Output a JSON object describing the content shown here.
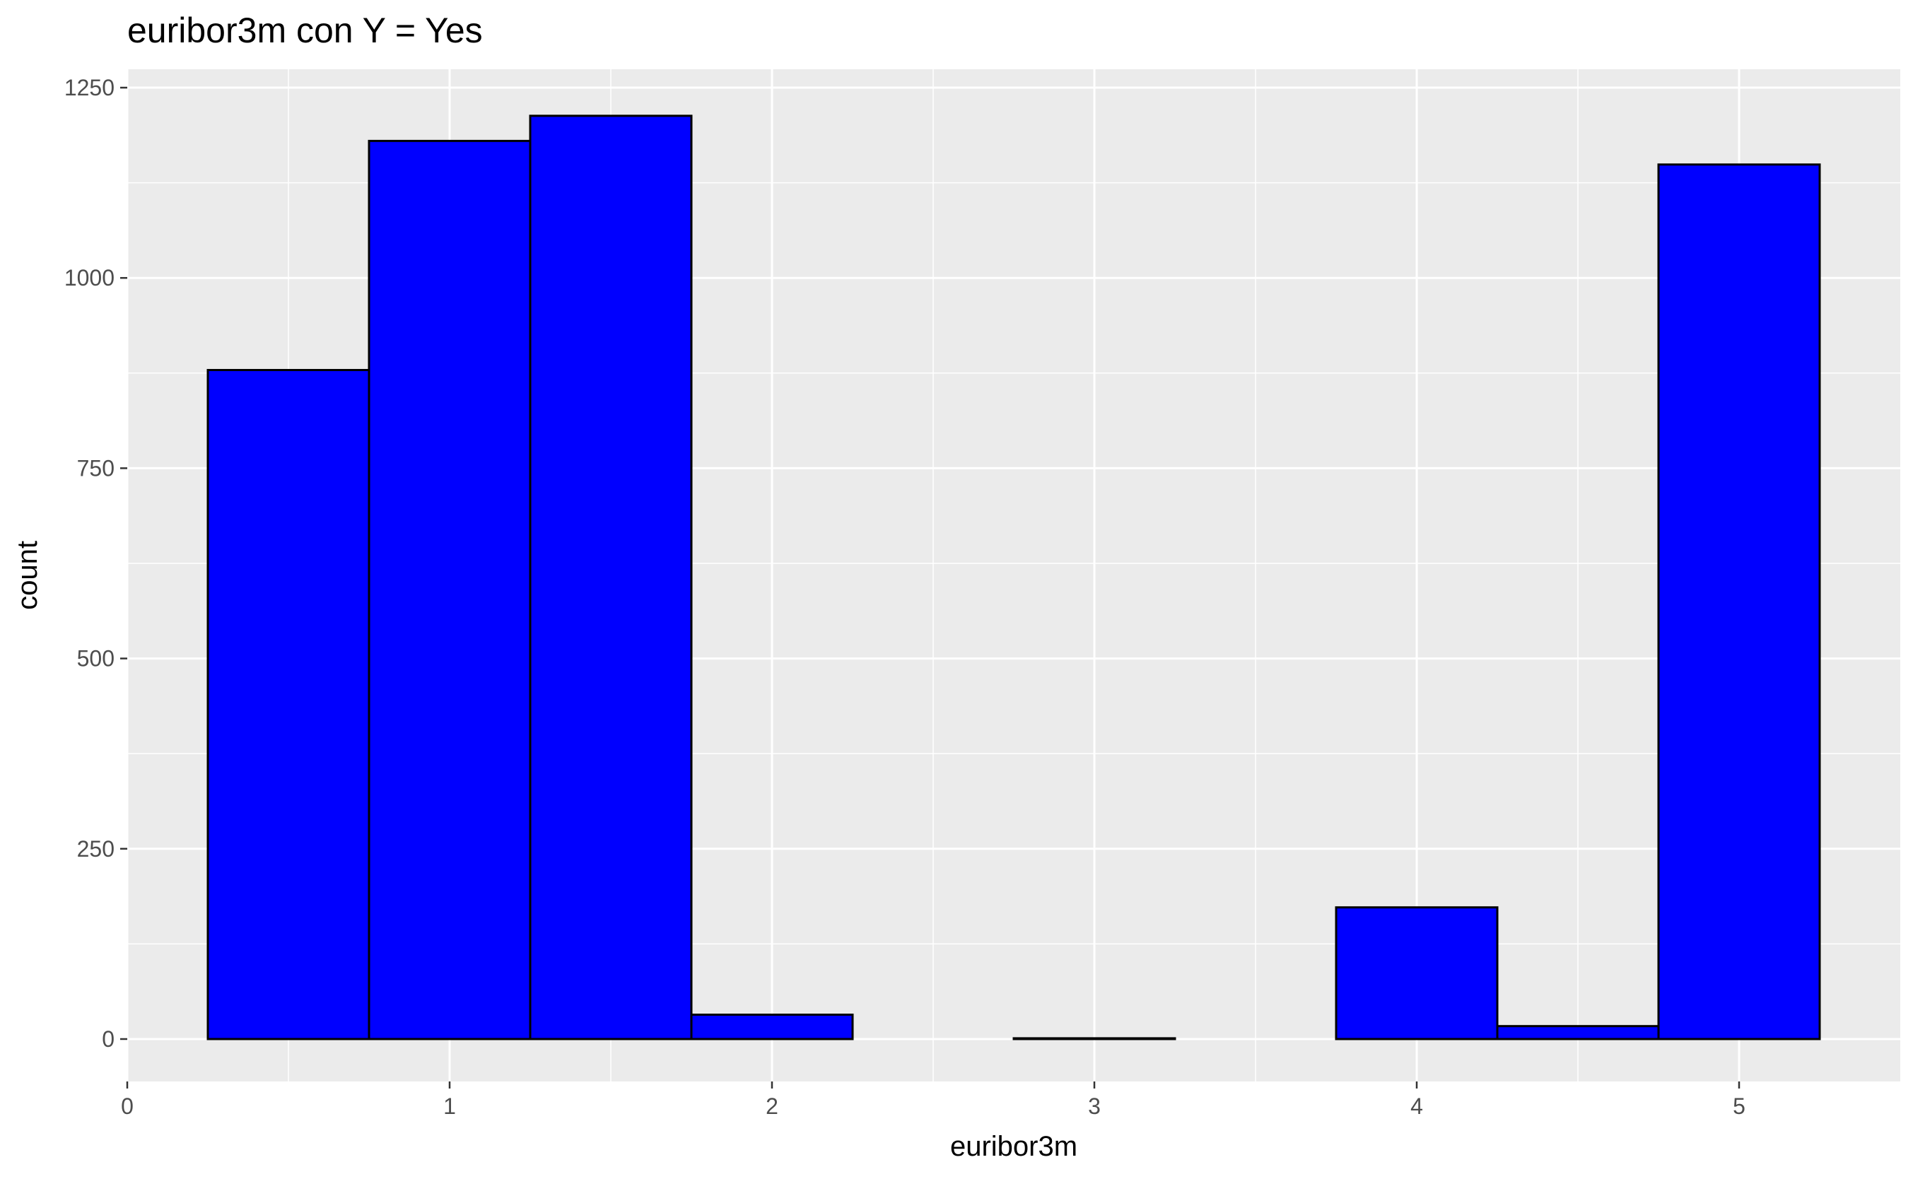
{
  "chart_data": {
    "type": "bar",
    "title": "euribor3m con Y = Yes",
    "xlabel": "euribor3m",
    "ylabel": "count",
    "xlim": [
      0,
      5.5
    ],
    "ylim": [
      -40,
      1250
    ],
    "x_ticks": [
      0,
      1,
      2,
      3,
      4,
      5
    ],
    "y_ticks": [
      0,
      250,
      500,
      750,
      1000,
      1250
    ],
    "bin_width": 0.5,
    "bins": [
      {
        "x0": 0.25,
        "x1": 0.75,
        "count": 879
      },
      {
        "x0": 0.75,
        "x1": 1.25,
        "count": 1180
      },
      {
        "x0": 1.25,
        "x1": 1.75,
        "count": 1213
      },
      {
        "x0": 1.75,
        "x1": 2.25,
        "count": 32
      },
      {
        "x0": 2.25,
        "x1": 2.75,
        "count": 0
      },
      {
        "x0": 2.75,
        "x1": 3.25,
        "count": 1
      },
      {
        "x0": 3.25,
        "x1": 3.75,
        "count": 0
      },
      {
        "x0": 3.75,
        "x1": 4.25,
        "count": 173
      },
      {
        "x0": 4.25,
        "x1": 4.75,
        "count": 17
      },
      {
        "x0": 4.75,
        "x1": 5.25,
        "count": 1149
      }
    ],
    "bar_fill": "#0000ff",
    "bar_outline": "#000000",
    "panel_background": "#ebebeb",
    "gridline_color": "#ffffff",
    "grid": true,
    "legend": "none"
  }
}
